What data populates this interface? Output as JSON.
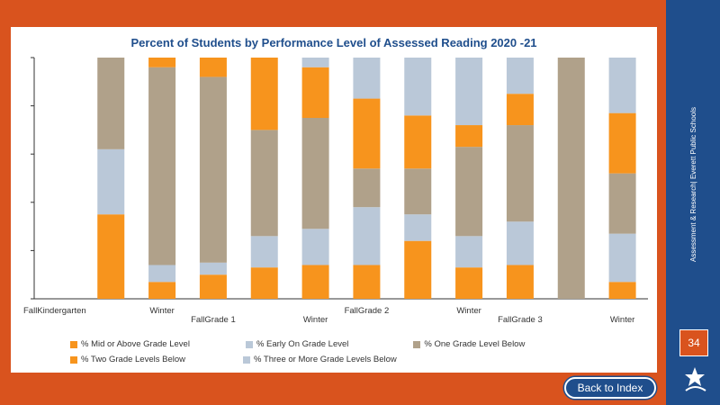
{
  "slide": {
    "side_text": "Assessment & Research| Everett Public Schools",
    "page_number": "34",
    "back_button_label": "Back to Index",
    "logo_icon": "school-mascot-logo-icon"
  },
  "colors": {
    "background": "#d9531e",
    "sidebar": "#1f4e8c",
    "title": "#1f4e8c"
  },
  "chart_data": {
    "type": "bar",
    "stacked": true,
    "normalized": true,
    "title": "Percent of Students by Performance Level of Assessed Reading 2020 -21",
    "xlabel": "",
    "ylabel": "",
    "ylim": [
      0,
      100
    ],
    "y_tick_labels_shown": false,
    "grid": false,
    "legend_position": "bottom",
    "categories": [
      "FallKindergarten",
      "",
      "Winter",
      "FallGrade 1",
      "",
      "Winter",
      "FallGrade 2",
      "",
      "Winter",
      "FallGrade 3",
      "",
      "Winter"
    ],
    "series": [
      {
        "name": "% Mid or Above Grade Level",
        "color": "#f7941d",
        "values": [
          0,
          35,
          7,
          10,
          13,
          14,
          14,
          24,
          13,
          14,
          0,
          7
        ]
      },
      {
        "name": "% Early On Grade Level",
        "color": "#bac8d8",
        "values": [
          0,
          27,
          7,
          5,
          13,
          15,
          24,
          11,
          13,
          18,
          0,
          20
        ]
      },
      {
        "name": "% One Grade Level Below",
        "color": "#b0a18a",
        "values": [
          0,
          38,
          82,
          77,
          44,
          46,
          16,
          19,
          37,
          40,
          100,
          25
        ]
      },
      {
        "name": "% Two Grade Levels Below",
        "color": "#f7941d",
        "values": [
          0,
          0,
          4,
          8,
          30,
          21,
          29,
          22,
          9,
          13,
          0,
          25
        ]
      },
      {
        "name": "% Three or More Grade Levels Below",
        "color": "#bac8d8",
        "values": [
          0,
          0,
          0,
          0,
          0,
          4,
          17,
          24,
          28,
          15,
          0,
          23
        ]
      }
    ]
  }
}
